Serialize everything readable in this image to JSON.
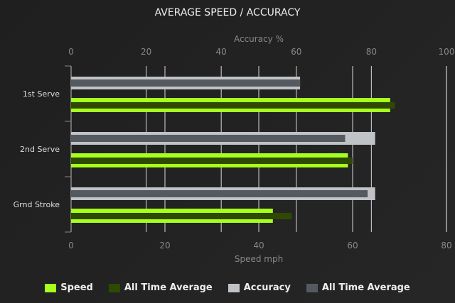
{
  "chart_data": {
    "type": "bar",
    "orientation": "horizontal",
    "title": "AVERAGE SPEED / ACCURACY",
    "categories": [
      "1st Serve",
      "2nd Serve",
      "Grnd Stroke"
    ],
    "top_axis": {
      "label": "Accuracy %",
      "range": [
        0,
        100
      ],
      "ticks": [
        "0",
        "20",
        "40",
        "60",
        "80",
        "100"
      ]
    },
    "bottom_axis": {
      "label": "Speed mph",
      "range": [
        0,
        80
      ],
      "ticks": [
        "0",
        "20",
        "40",
        "60",
        "80"
      ]
    },
    "series": [
      {
        "name": "Speed",
        "axis": "bottom",
        "color": "#a6ff1e",
        "values": [
          68,
          59,
          43
        ]
      },
      {
        "name": "All Time Average",
        "axis": "bottom",
        "color": "#2e4a00",
        "values": [
          69,
          60,
          47
        ]
      },
      {
        "name": "Accuracy",
        "axis": "top",
        "color": "#c0c3c5",
        "values": [
          61,
          81,
          81
        ]
      },
      {
        "name": "All Time Average",
        "axis": "top",
        "color": "#555a60",
        "values": [
          61,
          73,
          79
        ]
      }
    ],
    "grid": true,
    "legend": "bottom"
  }
}
